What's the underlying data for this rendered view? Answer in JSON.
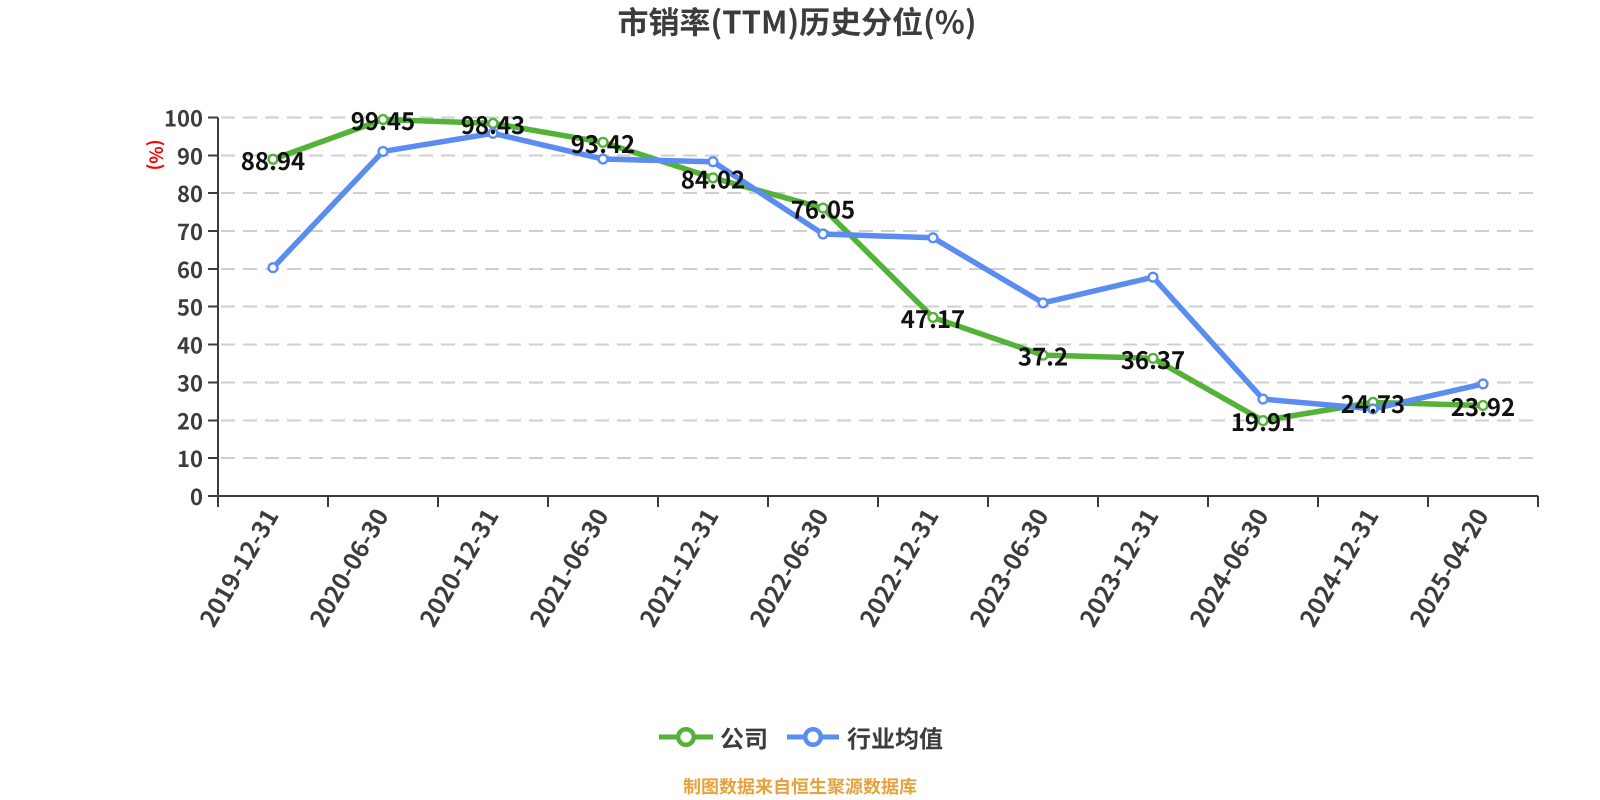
{
  "title": "市销率(TTM)历史分位(%)",
  "y_axis_name": "(%)",
  "caption": "制图数据来自恒生聚源数据库",
  "legend": [
    {
      "label": "公司",
      "color": "#54B238"
    },
    {
      "label": "行业均值",
      "color": "#5B8CF0"
    }
  ],
  "colors": {
    "company_green": "#54B238",
    "industry_blue": "#5B8CF0",
    "axis_text": "#3C3C3C",
    "data_label": "#111111",
    "y_axis_name_red": "#FF0000",
    "caption_orange": "#E6A23C",
    "gridline": "#CFCFCF",
    "marker_fill": "#FFFFFF",
    "background": "#FFFFFF"
  },
  "chart_data": {
    "type": "line",
    "title": "市销率(TTM)历史分位(%)",
    "xlabel": "",
    "ylabel": "(%)",
    "ylim": [
      0,
      100
    ],
    "y_ticks": [
      0,
      10,
      20,
      30,
      40,
      50,
      60,
      70,
      80,
      90,
      100
    ],
    "grid": "dashed-horizontal",
    "legend_position": "bottom",
    "categories": [
      "2019-12-31",
      "2020-06-30",
      "2020-12-31",
      "2021-06-30",
      "2021-12-31",
      "2022-06-30",
      "2022-12-31",
      "2023-06-30",
      "2023-12-31",
      "2024-06-30",
      "2024-12-31",
      "2025-04-20"
    ],
    "series": [
      {
        "name": "公司",
        "color": "#54B238",
        "labels_shown": true,
        "values": [
          88.94,
          99.45,
          98.43,
          93.42,
          84.02,
          76.05,
          47.17,
          37.2,
          36.37,
          19.91,
          24.73,
          23.92
        ]
      },
      {
        "name": "行业均值",
        "color": "#5B8CF0",
        "labels_shown": false,
        "values": [
          60.3,
          91.0,
          95.8,
          89.0,
          88.3,
          69.2,
          68.2,
          51.0,
          57.8,
          25.6,
          23.0,
          29.6
        ]
      }
    ]
  }
}
